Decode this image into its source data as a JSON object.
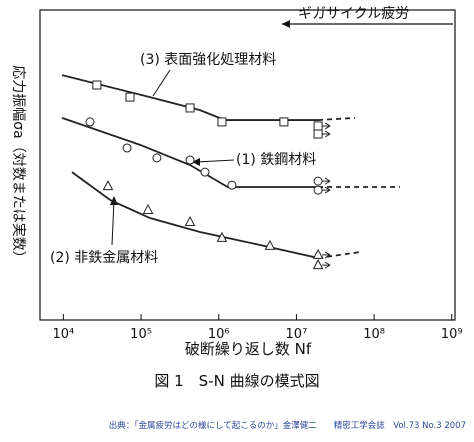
{
  "chart_data": {
    "type": "scatter",
    "title": "ギガサイクル疲労",
    "caption": "図 1　S-N 曲線の模式図",
    "source": "出典：「金属疲労はどの様にして起こるのか」金澤健二　　精密工学会誌　Vol.73 No.3 2007",
    "x_label": "破断繰り返し数 Nf",
    "y_label": "応力振幅σa（対数または実数）",
    "x_log": true,
    "xlim": [
      5000,
      1100000000
    ],
    "ylim": [
      0,
      100
    ],
    "xticks": [
      {
        "value": 10000,
        "label": "10⁴"
      },
      {
        "value": 100000,
        "label": "10⁵"
      },
      {
        "value": 1000000,
        "label": "10⁶"
      },
      {
        "value": 10000000,
        "label": "10⁷"
      },
      {
        "value": 100000000,
        "label": "10⁸"
      },
      {
        "value": 1000000000,
        "label": "10⁹"
      }
    ],
    "series": [
      {
        "name": "(3)  表面強化処理材料",
        "marker": "square",
        "color": "#222222",
        "x": [
          27000,
          72000,
          427000,
          1100000,
          6900000,
          19000000,
          19000000
        ],
        "values": [
          75.8,
          71.9,
          68.4,
          63.9,
          63.9,
          62.6,
          60.0
        ],
        "curve": {
          "x": [
            9600,
            130000,
            573000,
            1200000,
            19000000
          ],
          "y": [
            79.0,
            71.9,
            67.7,
            64.5,
            64.5
          ]
        },
        "dashed": {
          "x": [
            19000000,
            56600000
          ],
          "y": [
            64.5,
            65.2
          ]
        }
      },
      {
        "name": "(1)  鉄鋼材料",
        "marker": "circle",
        "color": "#222222",
        "x": [
          22000,
          66000,
          160000,
          427000,
          665000,
          1480000,
          19000000,
          19000000
        ],
        "values": [
          63.9,
          55.5,
          52.3,
          51.6,
          47.7,
          43.5,
          44.8,
          41.9
        ],
        "curve": {
          "x": [
            9600,
            97000,
            427000,
            1300000,
            19000000
          ],
          "y": [
            65.2,
            56.5,
            50.0,
            42.9,
            42.9
          ]
        },
        "dashed": {
          "x": [
            19000000,
            215000000
          ],
          "y": [
            42.9,
            42.9
          ]
        }
      },
      {
        "name": "(2)  非鉄金属材料",
        "marker": "triangle",
        "color": "#222222",
        "x": [
          37500,
          123000,
          427000,
          1100000,
          4560000,
          19000000,
          19000000
        ],
        "values": [
          43.2,
          35.5,
          31.6,
          26.5,
          23.9,
          21.0,
          17.7
        ],
        "curve": {
          "x": [
            12900,
            40000,
            130000,
            573000,
            3400000,
            19000000
          ],
          "y": [
            47.7,
            38.7,
            32.9,
            28.4,
            24.2,
            20.0
          ]
        },
        "dashed": {
          "x": [
            19000000,
            65600000
          ],
          "y": [
            20.0,
            21.9
          ]
        }
      }
    ]
  }
}
